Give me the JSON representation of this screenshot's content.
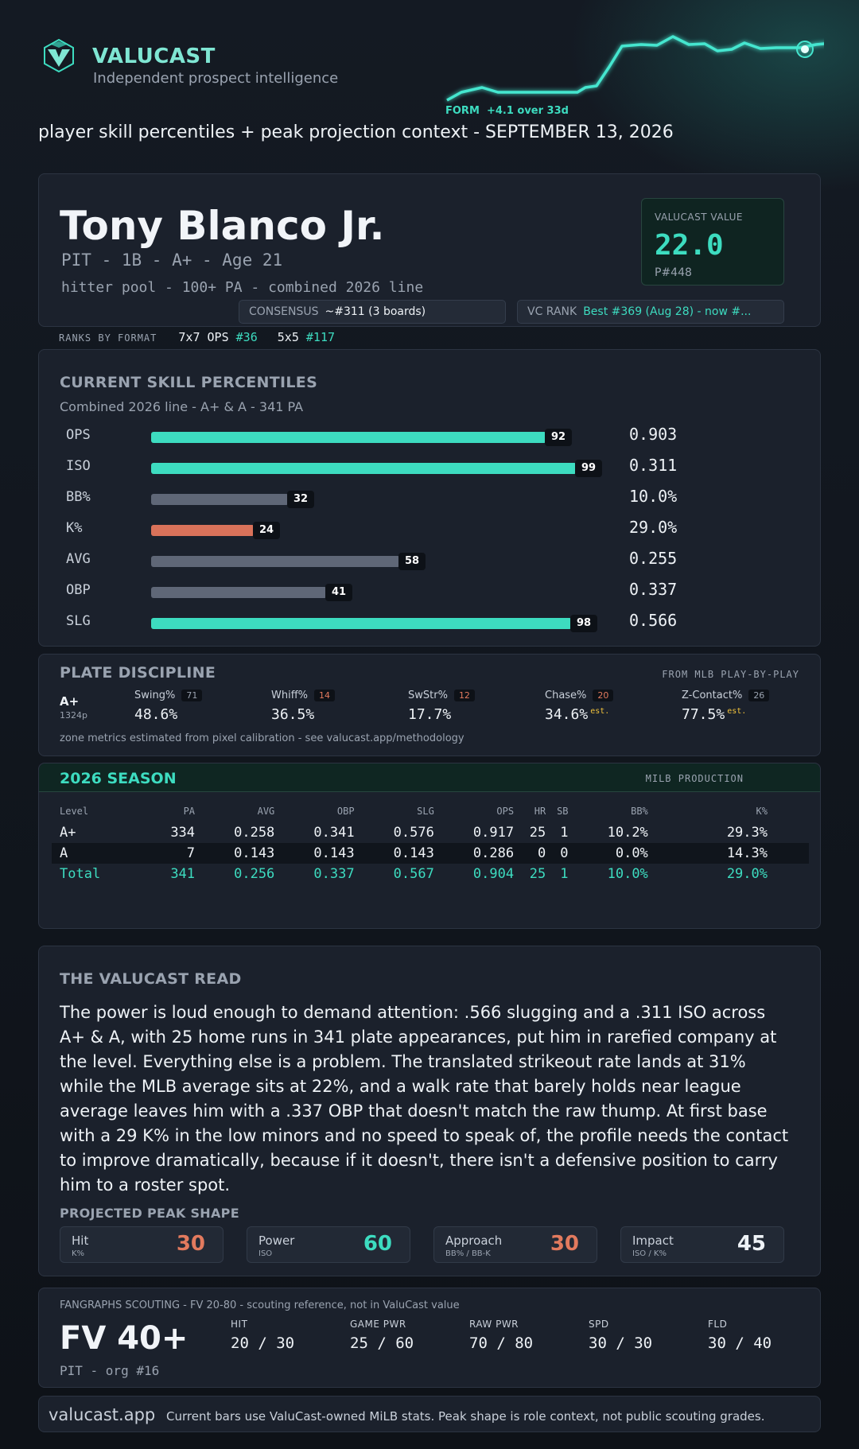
{
  "header": {
    "brand": "VALUCAST",
    "tagline": "Independent prospect intelligence",
    "form_label": "FORM",
    "form_delta": "+4.1 over 33d",
    "subtitle": "player skill percentiles + peak projection context - SEPTEMBER 13, 2026"
  },
  "player": {
    "name": "Tony Blanco Jr.",
    "meta": "PIT - 1B - A+ - Age 21",
    "pool": "hitter pool - 100+ PA - combined 2026 line",
    "value_label": "VALUCAST VALUE",
    "value": "22.0",
    "value_rank": "P#448",
    "consensus_label": "CONSENSUS",
    "consensus_value": "~#311 (3 boards)",
    "vc_rank_label": "VC RANK",
    "vc_rank_value": "Best #369 (Aug 28) - now #..."
  },
  "formats": {
    "label": "RANKS BY FORMAT",
    "items": [
      {
        "name": "7x7 OPS",
        "rank": "#36"
      },
      {
        "name": "5x5",
        "rank": "#117"
      }
    ]
  },
  "percentiles": {
    "title": "CURRENT SKILL PERCENTILES",
    "subtitle": "Combined 2026 line - A+ & A - 341 PA",
    "rows": [
      {
        "label": "OPS",
        "pct": 92,
        "display_pct": "92",
        "value": "0.903",
        "tone": "teal"
      },
      {
        "label": "ISO",
        "pct": 99,
        "display_pct": "99",
        "value": "0.311",
        "tone": "teal"
      },
      {
        "label": "BB%",
        "pct": 32,
        "display_pct": "32",
        "value": "10.0%",
        "tone": "gray"
      },
      {
        "label": "K%",
        "pct": 24,
        "display_pct": "24",
        "value": "29.0%",
        "tone": "coral"
      },
      {
        "label": "AVG",
        "pct": 58,
        "display_pct": "58",
        "value": "0.255",
        "tone": "gray"
      },
      {
        "label": "OBP",
        "pct": 41,
        "display_pct": "41",
        "value": "0.337",
        "tone": "gray"
      },
      {
        "label": "SLG",
        "pct": 98,
        "display_pct": "98",
        "value": "0.566",
        "tone": "teal"
      }
    ]
  },
  "discipline": {
    "title": "PLATE DISCIPLINE",
    "source": "FROM MLB PLAY-BY-PLAY",
    "level": "A+",
    "pitches": "1324p",
    "metrics": [
      {
        "name": "Swing%",
        "pct": "71",
        "value": "48.6%",
        "est": "",
        "pct_color": "#9aa3b0"
      },
      {
        "name": "Whiff%",
        "pct": "14",
        "value": "36.5%",
        "est": "",
        "pct_color": "#e27a5e"
      },
      {
        "name": "SwStr%",
        "pct": "12",
        "value": "17.7%",
        "est": "",
        "pct_color": "#e27a5e"
      },
      {
        "name": "Chase%",
        "pct": "20",
        "value": "34.6%",
        "est": "est.",
        "pct_color": "#e27a5e"
      },
      {
        "name": "Z-Contact%",
        "pct": "26",
        "value": "77.5%",
        "est": "est.",
        "pct_color": "#9aa3b0"
      }
    ],
    "note": "zone metrics estimated from pixel calibration - see valucast.app/methodology"
  },
  "season": {
    "title": "2026 SEASON",
    "right_label": "MILB PRODUCTION",
    "columns": [
      "Level",
      "PA",
      "AVG",
      "OBP",
      "SLG",
      "OPS",
      "HR",
      "SB",
      "BB%",
      "K%"
    ],
    "rows": [
      [
        "A+",
        "334",
        "0.258",
        "0.341",
        "0.576",
        "0.917",
        "25",
        "1",
        "10.2%",
        "29.3%"
      ],
      [
        "A",
        "7",
        "0.143",
        "0.143",
        "0.143",
        "0.286",
        "0",
        "0",
        "0.0%",
        "14.3%"
      ],
      [
        "Total",
        "341",
        "0.256",
        "0.337",
        "0.567",
        "0.904",
        "25",
        "1",
        "10.0%",
        "29.0%"
      ]
    ]
  },
  "read": {
    "title": "THE VALUCAST READ",
    "body": "The power is loud enough to demand attention: .566 slugging and a .311 ISO across A+ & A, with 25 home runs in 341 plate appearances, put him in rarefied company at the level. Everything else is a problem. The translated strikeout rate lands at 31% while the MLB average sits at 22%, and a walk rate that barely holds near league average leaves him with a .337 OBP that doesn't match the raw thump. At first base with a 29 K% in the low minors and no speed to speak of, the profile needs the contact to improve dramatically, because if it doesn't, there isn't a defensive position to carry him to a roster spot.",
    "peak_title": "PROJECTED PEAK SHAPE",
    "peak": [
      {
        "name": "Hit",
        "sub": "K%",
        "value": "30",
        "color": "#e27a5e"
      },
      {
        "name": "Power",
        "sub": "ISO",
        "value": "60",
        "color": "#3ddcc0"
      },
      {
        "name": "Approach",
        "sub": "BB% / BB-K",
        "value": "30",
        "color": "#e27a5e"
      },
      {
        "name": "Impact",
        "sub": "ISO / K%",
        "value": "45",
        "color": "#eef2f6"
      }
    ]
  },
  "fangraphs": {
    "header": "FANGRAPHS SCOUTING - FV 20-80 - scouting reference, not in ValuCast value",
    "fv": "FV 40+",
    "org": "PIT - org #16",
    "grades": [
      {
        "name": "HIT",
        "value": "20 / 30"
      },
      {
        "name": "GAME PWR",
        "value": "25 / 60"
      },
      {
        "name": "RAW PWR",
        "value": "70 / 80"
      },
      {
        "name": "SPD",
        "value": "30 / 30"
      },
      {
        "name": "FLD",
        "value": "30 / 40"
      }
    ]
  },
  "footer": {
    "url": "valucast.app",
    "text": "Current bars use ValuCast-owned MiLB stats. Peak shape is role context, not public scouting grades."
  },
  "colors": {
    "teal": "#3ddcc0",
    "coral": "#d9725a",
    "gray": "#5f6777",
    "gold": "#f0c23c"
  }
}
